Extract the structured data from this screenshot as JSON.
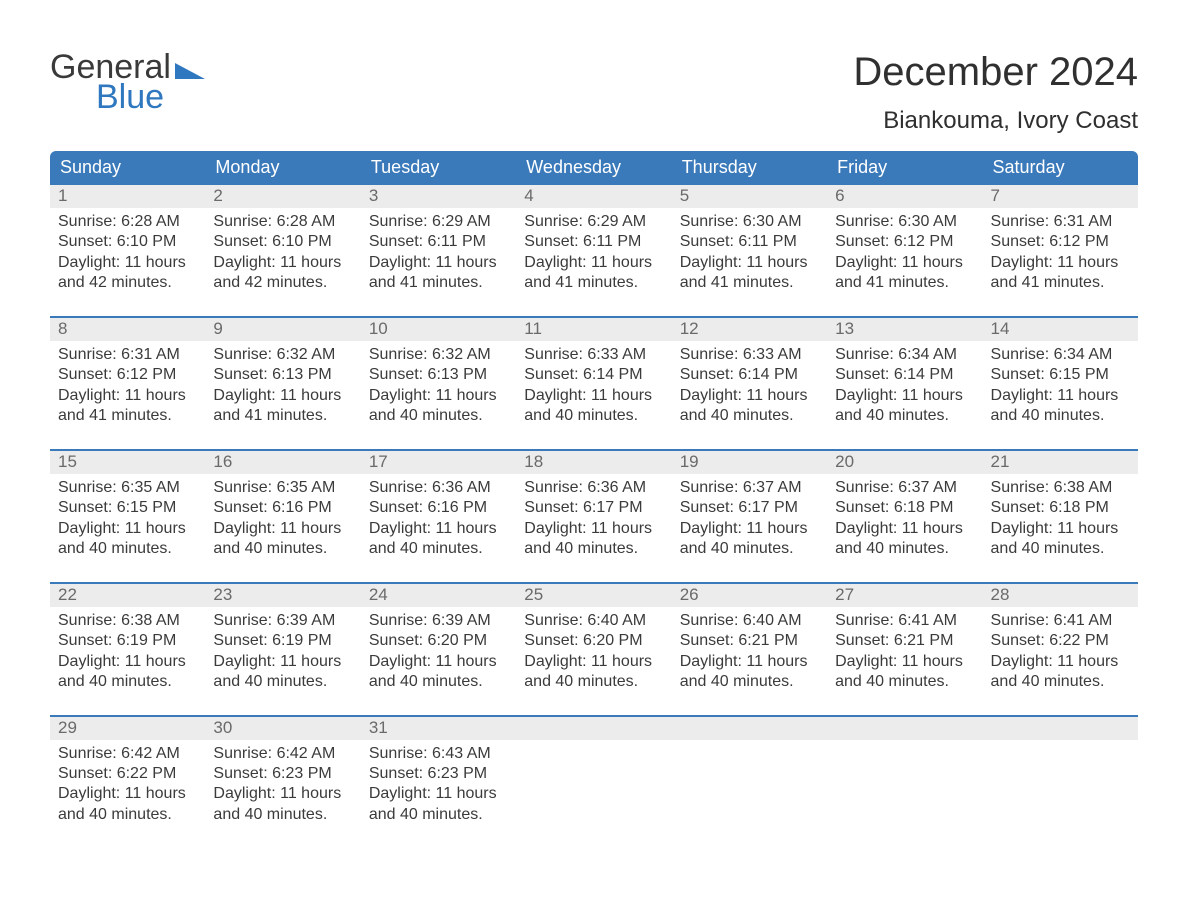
{
  "logo": {
    "word1": "General",
    "word2": "Blue",
    "tri_color": "#2f78bf",
    "word1_color": "#3a3a3a",
    "word2_color": "#2f78bf"
  },
  "header": {
    "title": "December 2024",
    "location": "Biankouma, Ivory Coast"
  },
  "colors": {
    "header_bg": "#3a79ba",
    "header_text": "#ffffff",
    "daynum_bg": "#ececec",
    "daynum_text": "#6a6a6a",
    "body_text": "#3b3b3b",
    "rule": "#3a79ba",
    "page_bg": "#ffffff"
  },
  "typography": {
    "title_fontsize": 40,
    "location_fontsize": 24,
    "header_cell_fontsize": 18,
    "daynum_fontsize": 17,
    "body_fontsize": 16,
    "font_family": "Arial"
  },
  "weekday_labels": [
    "Sunday",
    "Monday",
    "Tuesday",
    "Wednesday",
    "Thursday",
    "Friday",
    "Saturday"
  ],
  "labels": {
    "sunrise": "Sunrise:",
    "sunset": "Sunset:",
    "daylight": "Daylight:"
  },
  "weeks": [
    [
      {
        "n": "1",
        "sunrise": "6:28 AM",
        "sunset": "6:10 PM",
        "daylight": "11 hours and 42 minutes."
      },
      {
        "n": "2",
        "sunrise": "6:28 AM",
        "sunset": "6:10 PM",
        "daylight": "11 hours and 42 minutes."
      },
      {
        "n": "3",
        "sunrise": "6:29 AM",
        "sunset": "6:11 PM",
        "daylight": "11 hours and 41 minutes."
      },
      {
        "n": "4",
        "sunrise": "6:29 AM",
        "sunset": "6:11 PM",
        "daylight": "11 hours and 41 minutes."
      },
      {
        "n": "5",
        "sunrise": "6:30 AM",
        "sunset": "6:11 PM",
        "daylight": "11 hours and 41 minutes."
      },
      {
        "n": "6",
        "sunrise": "6:30 AM",
        "sunset": "6:12 PM",
        "daylight": "11 hours and 41 minutes."
      },
      {
        "n": "7",
        "sunrise": "6:31 AM",
        "sunset": "6:12 PM",
        "daylight": "11 hours and 41 minutes."
      }
    ],
    [
      {
        "n": "8",
        "sunrise": "6:31 AM",
        "sunset": "6:12 PM",
        "daylight": "11 hours and 41 minutes."
      },
      {
        "n": "9",
        "sunrise": "6:32 AM",
        "sunset": "6:13 PM",
        "daylight": "11 hours and 41 minutes."
      },
      {
        "n": "10",
        "sunrise": "6:32 AM",
        "sunset": "6:13 PM",
        "daylight": "11 hours and 40 minutes."
      },
      {
        "n": "11",
        "sunrise": "6:33 AM",
        "sunset": "6:14 PM",
        "daylight": "11 hours and 40 minutes."
      },
      {
        "n": "12",
        "sunrise": "6:33 AM",
        "sunset": "6:14 PM",
        "daylight": "11 hours and 40 minutes."
      },
      {
        "n": "13",
        "sunrise": "6:34 AM",
        "sunset": "6:14 PM",
        "daylight": "11 hours and 40 minutes."
      },
      {
        "n": "14",
        "sunrise": "6:34 AM",
        "sunset": "6:15 PM",
        "daylight": "11 hours and 40 minutes."
      }
    ],
    [
      {
        "n": "15",
        "sunrise": "6:35 AM",
        "sunset": "6:15 PM",
        "daylight": "11 hours and 40 minutes."
      },
      {
        "n": "16",
        "sunrise": "6:35 AM",
        "sunset": "6:16 PM",
        "daylight": "11 hours and 40 minutes."
      },
      {
        "n": "17",
        "sunrise": "6:36 AM",
        "sunset": "6:16 PM",
        "daylight": "11 hours and 40 minutes."
      },
      {
        "n": "18",
        "sunrise": "6:36 AM",
        "sunset": "6:17 PM",
        "daylight": "11 hours and 40 minutes."
      },
      {
        "n": "19",
        "sunrise": "6:37 AM",
        "sunset": "6:17 PM",
        "daylight": "11 hours and 40 minutes."
      },
      {
        "n": "20",
        "sunrise": "6:37 AM",
        "sunset": "6:18 PM",
        "daylight": "11 hours and 40 minutes."
      },
      {
        "n": "21",
        "sunrise": "6:38 AM",
        "sunset": "6:18 PM",
        "daylight": "11 hours and 40 minutes."
      }
    ],
    [
      {
        "n": "22",
        "sunrise": "6:38 AM",
        "sunset": "6:19 PM",
        "daylight": "11 hours and 40 minutes."
      },
      {
        "n": "23",
        "sunrise": "6:39 AM",
        "sunset": "6:19 PM",
        "daylight": "11 hours and 40 minutes."
      },
      {
        "n": "24",
        "sunrise": "6:39 AM",
        "sunset": "6:20 PM",
        "daylight": "11 hours and 40 minutes."
      },
      {
        "n": "25",
        "sunrise": "6:40 AM",
        "sunset": "6:20 PM",
        "daylight": "11 hours and 40 minutes."
      },
      {
        "n": "26",
        "sunrise": "6:40 AM",
        "sunset": "6:21 PM",
        "daylight": "11 hours and 40 minutes."
      },
      {
        "n": "27",
        "sunrise": "6:41 AM",
        "sunset": "6:21 PM",
        "daylight": "11 hours and 40 minutes."
      },
      {
        "n": "28",
        "sunrise": "6:41 AM",
        "sunset": "6:22 PM",
        "daylight": "11 hours and 40 minutes."
      }
    ],
    [
      {
        "n": "29",
        "sunrise": "6:42 AM",
        "sunset": "6:22 PM",
        "daylight": "11 hours and 40 minutes."
      },
      {
        "n": "30",
        "sunrise": "6:42 AM",
        "sunset": "6:23 PM",
        "daylight": "11 hours and 40 minutes."
      },
      {
        "n": "31",
        "sunrise": "6:43 AM",
        "sunset": "6:23 PM",
        "daylight": "11 hours and 40 minutes."
      },
      {
        "empty": true
      },
      {
        "empty": true
      },
      {
        "empty": true
      },
      {
        "empty": true
      }
    ]
  ]
}
